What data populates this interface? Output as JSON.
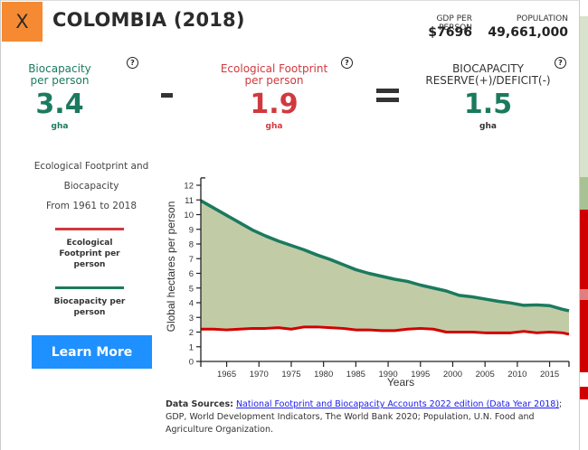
{
  "header": {
    "close_label": "X",
    "title": "COLOMBIA (2018)",
    "gdp_label": "GDP PER PERSON",
    "gdp_value": "$7696",
    "population_label": "POPULATION",
    "population_value": "49,661,000"
  },
  "metrics": {
    "biocapacity": {
      "label_line1": "Biocapacity",
      "label_line2": "per person",
      "value": "3.4",
      "unit": "gha",
      "help": "?"
    },
    "footprint": {
      "label_line1": "Ecological Footprint",
      "label_line2": "per person",
      "value": "1.9",
      "unit": "gha",
      "help": "?"
    },
    "reserve": {
      "label_line1": "BIOCAPACITY",
      "label_line2": "RESERVE(+)/DEFICIT(-)",
      "value": "1.5",
      "unit": "gha",
      "help": "?"
    }
  },
  "colors": {
    "accent_orange": "#f58a32",
    "biocapacity_green": "#1b7a5e",
    "footprint_red": "#d0393e",
    "reserve_fill": "#c1cca7",
    "button_blue": "#1e90ff"
  },
  "sidebar": {
    "desc_line1": "Ecological Footprint and",
    "desc_line2": "Biocapacity",
    "desc_line3": "From 1961 to 2018",
    "legend_footprint_line1": "Ecological",
    "legend_footprint_line2": "Footprint per",
    "legend_footprint_line3": "person",
    "legend_biocapacity_line1": "Biocapacity per",
    "legend_biocapacity_line2": "person",
    "learn_more_label": "Learn More"
  },
  "sources": {
    "label": "Data Sources:",
    "link_text": "National Footprint and Biocapacity Accounts 2022 edition (Data Year 2018)",
    "rest": "; GDP, World Development Indicators, The World Bank 2020; Population, U.N. Food and Agriculture Organization."
  },
  "chart_data": {
    "type": "area",
    "title": "Ecological Footprint and Biocapacity From 1961 to 2018",
    "xlabel": "Years",
    "ylabel": "Global hectares per person",
    "xlim": [
      1961,
      2018
    ],
    "ylim": [
      0,
      12.5
    ],
    "x_ticks": [
      1965,
      1970,
      1975,
      1980,
      1985,
      1990,
      1995,
      2000,
      2005,
      2010,
      2015
    ],
    "y_ticks": [
      0,
      1,
      2,
      3,
      4,
      5,
      6,
      7,
      8,
      9,
      10,
      11,
      12
    ],
    "grid": false,
    "legend": "left-side",
    "x": [
      1961,
      1963,
      1965,
      1967,
      1969,
      1971,
      1973,
      1975,
      1977,
      1979,
      1981,
      1983,
      1985,
      1987,
      1989,
      1991,
      1993,
      1995,
      1997,
      1999,
      2001,
      2003,
      2005,
      2007,
      2009,
      2011,
      2013,
      2015,
      2017,
      2018
    ],
    "series": [
      {
        "name": "Biocapacity per person",
        "color": "#1b7a5e",
        "values": [
          10.95,
          10.45,
          9.95,
          9.45,
          8.95,
          8.55,
          8.2,
          7.9,
          7.6,
          7.25,
          6.95,
          6.6,
          6.25,
          6.0,
          5.8,
          5.6,
          5.45,
          5.2,
          5.0,
          4.8,
          4.5,
          4.4,
          4.25,
          4.1,
          3.98,
          3.82,
          3.85,
          3.8,
          3.55,
          3.45
        ]
      },
      {
        "name": "Ecological Footprint per person",
        "color": "#d0393e",
        "values": [
          2.2,
          2.2,
          2.15,
          2.2,
          2.25,
          2.25,
          2.3,
          2.2,
          2.35,
          2.35,
          2.3,
          2.25,
          2.15,
          2.15,
          2.1,
          2.1,
          2.2,
          2.25,
          2.2,
          2.0,
          2.0,
          2.0,
          1.95,
          1.95,
          1.95,
          2.05,
          1.95,
          2.0,
          1.95,
          1.85
        ]
      }
    ]
  }
}
